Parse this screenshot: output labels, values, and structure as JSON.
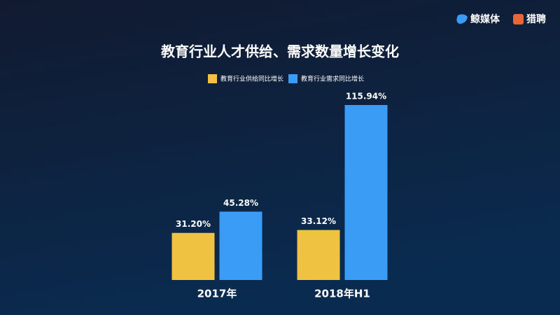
{
  "header": {
    "brands": [
      "鲸媒体",
      "猎聘"
    ]
  },
  "chart_data": {
    "type": "bar",
    "title": "教育行业人才供给、需求数量增长变化",
    "categories": [
      "2017年",
      "2018年H1"
    ],
    "series": [
      {
        "name": "教育行业供给同比增长",
        "color": "#f0c241",
        "values": [
          31.2,
          33.12
        ],
        "value_labels": [
          "31.20%",
          "33.12%"
        ]
      },
      {
        "name": "教育行业需求同比增长",
        "color": "#3b9cf5",
        "values": [
          45.28,
          115.94
        ],
        "value_labels": [
          "45.28%",
          "115.94%"
        ]
      }
    ]
  }
}
